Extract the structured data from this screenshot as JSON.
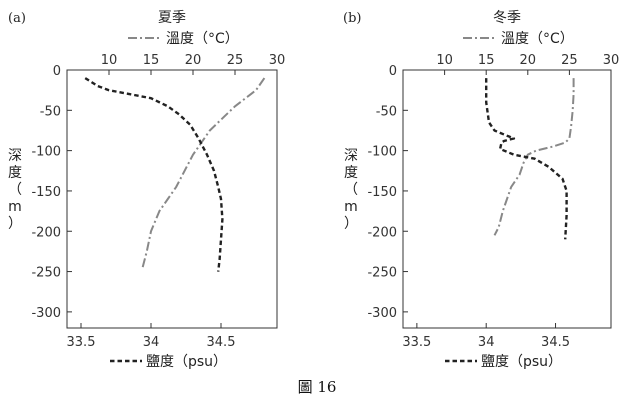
{
  "figure_caption": "圖 16",
  "chart_data": [
    {
      "type": "line",
      "panel_label": "(a)",
      "title": "夏季",
      "ylabel_parts": [
        "深",
        "度",
        "（",
        "m",
        "）"
      ],
      "ylim": [
        -320,
        0
      ],
      "yticks": [
        0,
        -50,
        -100,
        -150,
        -200,
        -250,
        -300
      ],
      "x_top": {
        "label": "溫度（°C）",
        "lim": [
          5,
          30
        ],
        "ticks": [
          10,
          15,
          20,
          25,
          30
        ]
      },
      "x_bottom": {
        "label": "鹽度（psu）",
        "lim": [
          33.4,
          34.9
        ],
        "ticks": [
          "33.5",
          "34",
          "34.5"
        ]
      },
      "series": [
        {
          "name": "溫度（°C）",
          "axis": "top",
          "style": "dashdot",
          "color": "#888888",
          "x": [
            28.5,
            27.5,
            25,
            24,
            23,
            22,
            21,
            20,
            19,
            18,
            17,
            16,
            15,
            14.5,
            14
          ],
          "y": [
            -10,
            -25,
            -45,
            -55,
            -65,
            -75,
            -90,
            -105,
            -125,
            -145,
            -160,
            -175,
            -200,
            -225,
            -245
          ]
        },
        {
          "name": "鹽度（psu）",
          "axis": "bottom",
          "style": "dashed",
          "color": "#222222",
          "x": [
            33.53,
            33.62,
            33.7,
            33.85,
            34.0,
            34.12,
            34.2,
            34.28,
            34.34,
            34.4,
            34.45,
            34.48,
            34.5,
            34.51,
            34.5,
            34.49,
            34.48
          ],
          "y": [
            -10,
            -20,
            -25,
            -30,
            -35,
            -45,
            -55,
            -68,
            -85,
            -105,
            -125,
            -145,
            -160,
            -185,
            -210,
            -235,
            -250
          ]
        }
      ]
    },
    {
      "type": "line",
      "panel_label": "(b)",
      "title": "冬季",
      "ylabel_parts": [
        "深",
        "度",
        "（",
        "m",
        "）"
      ],
      "ylim": [
        -320,
        0
      ],
      "yticks": [
        0,
        -50,
        -100,
        -150,
        -200,
        -250,
        -300
      ],
      "x_top": {
        "label": "溫度（°C）",
        "lim": [
          5,
          30
        ],
        "ticks": [
          10,
          15,
          20,
          25,
          30
        ]
      },
      "x_bottom": {
        "label": "鹽度（psu）",
        "lim": [
          33.4,
          34.9
        ],
        "ticks": [
          "33.5",
          "34",
          "34.5"
        ]
      },
      "series": [
        {
          "name": "溫度（°C）",
          "axis": "top",
          "style": "dashdot",
          "color": "#888888",
          "x": [
            25.5,
            25.5,
            25.4,
            25.2,
            25,
            24.5,
            23,
            21,
            20,
            19.5,
            19,
            18,
            17.5,
            17,
            16.5,
            16
          ],
          "y": [
            -10,
            -30,
            -50,
            -70,
            -85,
            -90,
            -95,
            -100,
            -105,
            -115,
            -130,
            -145,
            -160,
            -175,
            -195,
            -205
          ]
        },
        {
          "name": "鹽度（psu）",
          "axis": "bottom",
          "style": "dashed",
          "color": "#222222",
          "x": [
            34.0,
            34.0,
            34.02,
            34.06,
            34.1,
            34.2,
            34.13,
            34.11,
            34.1,
            34.2,
            34.35,
            34.45,
            34.55,
            34.58,
            34.58,
            34.57
          ],
          "y": [
            -10,
            -40,
            -65,
            -75,
            -78,
            -85,
            -88,
            -90,
            -98,
            -105,
            -110,
            -120,
            -135,
            -150,
            -180,
            -210
          ]
        }
      ]
    }
  ]
}
